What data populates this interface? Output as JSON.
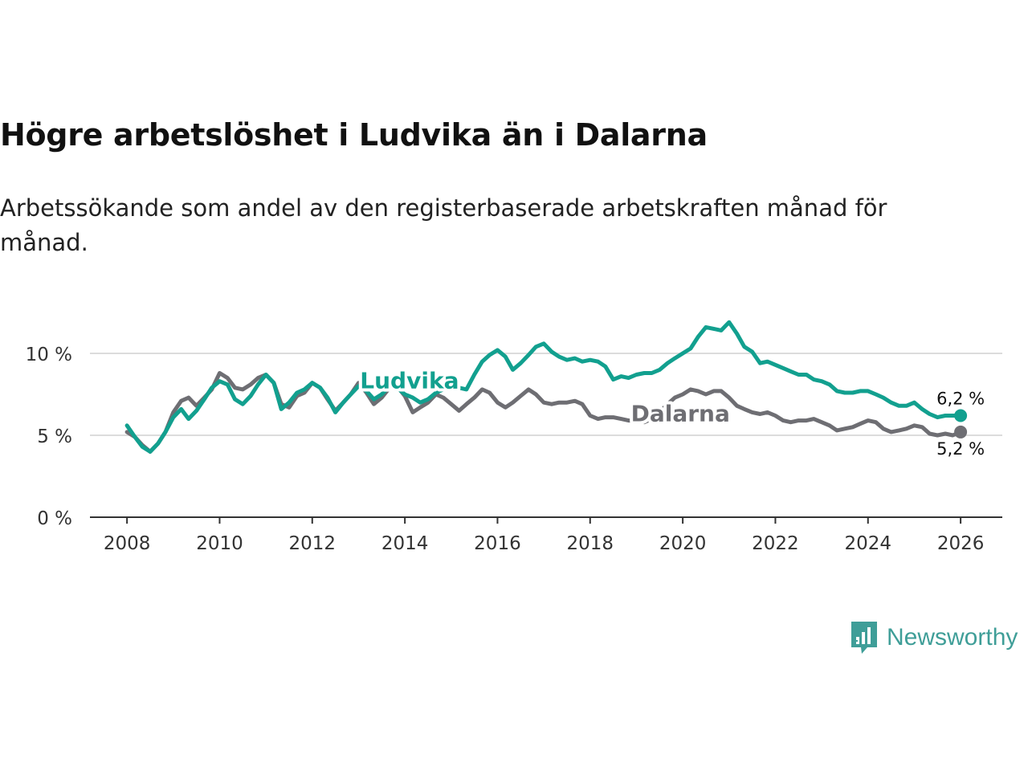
{
  "title": "Högre arbetslöshet i Ludvika än i Dalarna",
  "subtitle": "Arbetssökande som andel av den registerbaserade arbetskraften månad för månad.",
  "brand": {
    "name": "Newsworthy",
    "icon": "bar-chart-speech-icon",
    "color": "#3f9e98"
  },
  "chart_data": {
    "type": "line",
    "x_ticks": [
      "2008",
      "2010",
      "2012",
      "2014",
      "2016",
      "2018",
      "2020",
      "2022",
      "2024",
      "2026"
    ],
    "x_tick_values": [
      2008,
      2010,
      2012,
      2014,
      2016,
      2018,
      2020,
      2022,
      2024,
      2026
    ],
    "y_ticks": [
      "0 %",
      "5 %",
      "10 %"
    ],
    "y_tick_values": [
      0,
      5,
      10
    ],
    "xlim": [
      2007.2,
      2026.9
    ],
    "ylim": [
      0,
      10
    ],
    "grid": true,
    "series": [
      {
        "name": "Dalarna",
        "color": "#6e6e73",
        "end_label": "5,2 %",
        "x": [
          2008.0,
          2008.17,
          2008.33,
          2008.5,
          2008.67,
          2008.83,
          2009.0,
          2009.17,
          2009.33,
          2009.5,
          2009.67,
          2009.83,
          2010.0,
          2010.17,
          2010.33,
          2010.5,
          2010.67,
          2010.83,
          2011.0,
          2011.17,
          2011.33,
          2011.5,
          2011.67,
          2011.83,
          2012.0,
          2012.17,
          2012.33,
          2012.5,
          2012.67,
          2012.83,
          2013.0,
          2013.17,
          2013.33,
          2013.5,
          2013.67,
          2013.83,
          2014.0,
          2014.17,
          2014.33,
          2014.5,
          2014.67,
          2014.83,
          2015.0,
          2015.17,
          2015.33,
          2015.5,
          2015.67,
          2015.83,
          2016.0,
          2016.17,
          2016.33,
          2016.5,
          2016.67,
          2016.83,
          2017.0,
          2017.17,
          2017.33,
          2017.5,
          2017.67,
          2017.83,
          2018.0,
          2018.17,
          2018.33,
          2018.5,
          2018.67,
          2018.83,
          2019.0,
          2019.17,
          2019.33,
          2019.5,
          2019.67,
          2019.83,
          2020.0,
          2020.17,
          2020.33,
          2020.5,
          2020.67,
          2020.83,
          2021.0,
          2021.17,
          2021.33,
          2021.5,
          2021.67,
          2021.83,
          2022.0,
          2022.17,
          2022.33,
          2022.5,
          2022.67,
          2022.83,
          2023.0,
          2023.17,
          2023.33,
          2023.5,
          2023.67,
          2023.83,
          2024.0,
          2024.17,
          2024.33,
          2024.5,
          2024.67,
          2024.83,
          2025.0,
          2025.17,
          2025.33,
          2025.5,
          2025.67,
          2025.83,
          2026.0
        ],
        "y": [
          5.2,
          4.9,
          4.4,
          4.0,
          4.5,
          5.2,
          6.4,
          7.1,
          7.3,
          6.8,
          7.3,
          7.8,
          8.8,
          8.5,
          7.9,
          7.8,
          8.1,
          8.5,
          8.7,
          8.2,
          6.9,
          6.7,
          7.4,
          7.6,
          8.2,
          7.9,
          7.2,
          6.5,
          7.0,
          7.5,
          8.2,
          7.6,
          6.9,
          7.3,
          7.9,
          8.0,
          7.4,
          6.4,
          6.7,
          7.0,
          7.5,
          7.3,
          6.9,
          6.5,
          6.9,
          7.3,
          7.8,
          7.6,
          7.0,
          6.7,
          7.0,
          7.4,
          7.8,
          7.5,
          7.0,
          6.9,
          7.0,
          7.0,
          7.1,
          6.9,
          6.2,
          6.0,
          6.1,
          6.1,
          6.0,
          5.9,
          5.9,
          5.8,
          6.0,
          6.4,
          6.9,
          7.3,
          7.5,
          7.8,
          7.7,
          7.5,
          7.7,
          7.7,
          7.3,
          6.8,
          6.6,
          6.4,
          6.3,
          6.4,
          6.2,
          5.9,
          5.8,
          5.9,
          5.9,
          6.0,
          5.8,
          5.6,
          5.3,
          5.4,
          5.5,
          5.7,
          5.9,
          5.8,
          5.4,
          5.2,
          5.3,
          5.4,
          5.6,
          5.5,
          5.1,
          5.0,
          5.1,
          5.0,
          5.2
        ]
      },
      {
        "name": "Ludvika",
        "color": "#12a08f",
        "end_label": "6,2 %",
        "x": [
          2008.0,
          2008.17,
          2008.33,
          2008.5,
          2008.67,
          2008.83,
          2009.0,
          2009.17,
          2009.33,
          2009.5,
          2009.67,
          2009.83,
          2010.0,
          2010.17,
          2010.33,
          2010.5,
          2010.67,
          2010.83,
          2011.0,
          2011.17,
          2011.33,
          2011.5,
          2011.67,
          2011.83,
          2012.0,
          2012.17,
          2012.33,
          2012.5,
          2012.67,
          2012.83,
          2013.0,
          2013.17,
          2013.33,
          2013.5,
          2013.67,
          2013.83,
          2014.0,
          2014.17,
          2014.33,
          2014.5,
          2014.67,
          2014.83,
          2015.0,
          2015.17,
          2015.33,
          2015.5,
          2015.67,
          2015.83,
          2016.0,
          2016.17,
          2016.33,
          2016.5,
          2016.67,
          2016.83,
          2017.0,
          2017.17,
          2017.33,
          2017.5,
          2017.67,
          2017.83,
          2018.0,
          2018.17,
          2018.33,
          2018.5,
          2018.67,
          2018.83,
          2019.0,
          2019.17,
          2019.33,
          2019.5,
          2019.67,
          2019.83,
          2020.0,
          2020.17,
          2020.33,
          2020.5,
          2020.67,
          2020.83,
          2021.0,
          2021.17,
          2021.33,
          2021.5,
          2021.67,
          2021.83,
          2022.0,
          2022.17,
          2022.33,
          2022.5,
          2022.67,
          2022.83,
          2023.0,
          2023.17,
          2023.33,
          2023.5,
          2023.67,
          2023.83,
          2024.0,
          2024.17,
          2024.33,
          2024.5,
          2024.67,
          2024.83,
          2025.0,
          2025.17,
          2025.33,
          2025.5,
          2025.67,
          2025.83,
          2026.0
        ],
        "y": [
          5.6,
          4.9,
          4.3,
          4.0,
          4.5,
          5.2,
          6.1,
          6.6,
          6.0,
          6.5,
          7.2,
          7.9,
          8.3,
          8.1,
          7.2,
          6.9,
          7.4,
          8.1,
          8.7,
          8.2,
          6.6,
          7.0,
          7.6,
          7.8,
          8.2,
          7.9,
          7.3,
          6.4,
          7.0,
          7.5,
          8.0,
          7.7,
          7.2,
          7.5,
          8.0,
          7.9,
          7.5,
          7.3,
          7.0,
          7.2,
          7.6,
          7.8,
          8.2,
          7.9,
          7.8,
          8.7,
          9.5,
          9.9,
          10.2,
          9.8,
          9.0,
          9.4,
          9.9,
          10.4,
          10.6,
          10.1,
          9.8,
          9.6,
          9.7,
          9.5,
          9.6,
          9.5,
          9.2,
          8.4,
          8.6,
          8.5,
          8.7,
          8.8,
          8.8,
          9.0,
          9.4,
          9.7,
          10.0,
          10.3,
          11.0,
          11.6,
          11.5,
          11.4,
          11.9,
          11.2,
          10.4,
          10.1,
          9.4,
          9.5,
          9.3,
          9.1,
          8.9,
          8.7,
          8.7,
          8.4,
          8.3,
          8.1,
          7.7,
          7.6,
          7.6,
          7.7,
          7.7,
          7.5,
          7.3,
          7.0,
          6.8,
          6.8,
          7.0,
          6.6,
          6.3,
          6.1,
          6.2,
          6.2,
          6.2
        ]
      }
    ]
  }
}
